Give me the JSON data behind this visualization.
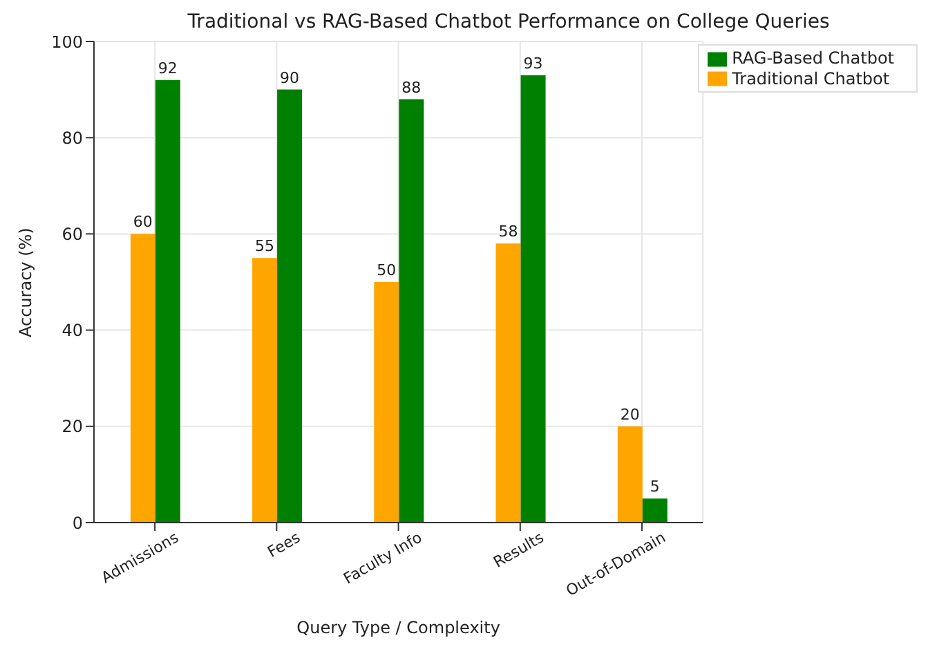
{
  "chart_data": {
    "type": "bar",
    "title": "Traditional vs RAG-Based Chatbot Performance on College Queries",
    "xlabel": "Query Type / Complexity",
    "ylabel": "Accuracy (%)",
    "categories": [
      "Admissions",
      "Fees",
      "Faculty Info",
      "Results",
      "Out-of-Domain"
    ],
    "series": [
      {
        "name": "Traditional Chatbot",
        "color": "#ffa500",
        "values": [
          60,
          55,
          50,
          58,
          20
        ]
      },
      {
        "name": "RAG-Based Chatbot",
        "color": "#008000",
        "values": [
          92,
          90,
          88,
          93,
          5
        ]
      }
    ],
    "ylim": [
      0,
      100
    ],
    "yticks": [
      0,
      20,
      40,
      60,
      80,
      100
    ],
    "grid": true,
    "legend": "top right",
    "data_labels": true
  }
}
